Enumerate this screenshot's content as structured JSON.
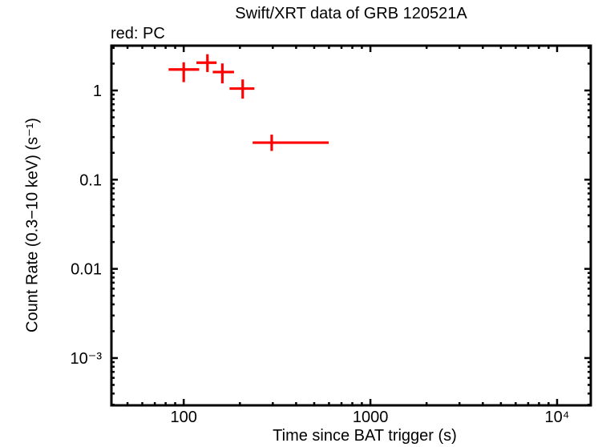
{
  "chart": {
    "title": "Swift/XRT data of GRB 120521A",
    "legend": "red: PC",
    "xlabel": "Time since BAT trigger (s)",
    "ylabel": "Count Rate (0.3−10 keV) (s⁻¹)"
  },
  "chart_data": {
    "type": "scatter",
    "title": "Swift/XRT data of GRB 120521A",
    "series_name": "PC mode",
    "marker": "error-bar-cross",
    "point_color": "#ff0000",
    "axis_color": "#000000",
    "background_color": "#ffffff",
    "grid": false,
    "x_scale": "log",
    "y_scale": "log",
    "xlabel": "Time since BAT trigger (s)",
    "ylabel": "Count Rate (0.3−10 keV) (s⁻¹)",
    "xlim": [
      41,
      15150
    ],
    "ylim": [
      0.000295,
      3.18
    ],
    "x_major_ticks": [
      {
        "value": 100,
        "label": "100"
      },
      {
        "value": 1000,
        "label": "1000"
      },
      {
        "value": 10000,
        "label": "10⁴"
      }
    ],
    "y_major_ticks": [
      {
        "value": 1,
        "label": "1"
      },
      {
        "value": 0.1,
        "label": "0.1"
      },
      {
        "value": 0.01,
        "label": "0.01"
      },
      {
        "value": 0.001,
        "label": "10⁻³"
      }
    ],
    "points": [
      {
        "t": 100,
        "t_lo": 83,
        "t_hi": 121,
        "rate": 1.72,
        "rate_lo": 1.24,
        "rate_hi": 2.07
      },
      {
        "t": 134,
        "t_lo": 117,
        "t_hi": 150,
        "rate": 2.05,
        "rate_lo": 1.61,
        "rate_hi": 2.55
      },
      {
        "t": 161,
        "t_lo": 143,
        "t_hi": 186,
        "rate": 1.61,
        "rate_lo": 1.2,
        "rate_hi": 2.01
      },
      {
        "t": 207,
        "t_lo": 176,
        "t_hi": 239,
        "rate": 1.05,
        "rate_lo": 0.81,
        "rate_hi": 1.33
      },
      {
        "t": 296,
        "t_lo": 234,
        "t_hi": 598,
        "rate": 0.26,
        "rate_lo": 0.21,
        "rate_hi": 0.32
      }
    ]
  }
}
